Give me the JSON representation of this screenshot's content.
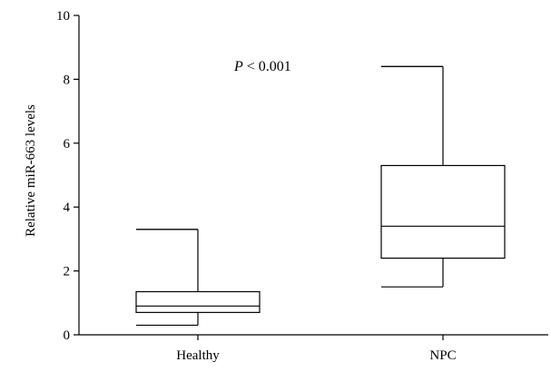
{
  "chart_data": {
    "type": "boxplot",
    "title": "",
    "xlabel": "",
    "ylabel": "Relative miR-663 levels",
    "ylim": [
      0,
      10
    ],
    "yticks": [
      0,
      2,
      4,
      6,
      8,
      10
    ],
    "grid": false,
    "categories": [
      "Healthy",
      "NPC"
    ],
    "boxes": [
      {
        "category": "Healthy",
        "whisker_low": 0.3,
        "q1": 0.7,
        "median": 0.9,
        "q3": 1.35,
        "whisker_high": 3.3
      },
      {
        "category": "NPC",
        "whisker_low": 1.5,
        "q1": 2.4,
        "median": 3.4,
        "q3": 5.3,
        "whisker_high": 8.4
      }
    ],
    "annotation": {
      "italic": "P",
      "text": " < 0.001"
    }
  }
}
